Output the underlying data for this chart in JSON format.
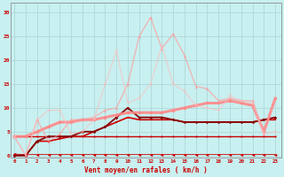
{
  "xlabel": "Vent moyen/en rafales ( km/h )",
  "background_color": "#c8f0f0",
  "grid_color": "#b0d8d8",
  "x_ticks": [
    0,
    1,
    2,
    3,
    4,
    5,
    6,
    7,
    8,
    9,
    10,
    11,
    12,
    13,
    14,
    15,
    16,
    17,
    18,
    19,
    20,
    21,
    22,
    23
  ],
  "y_ticks": [
    0,
    5,
    10,
    15,
    20,
    25,
    30
  ],
  "ylim": [
    -0.5,
    32
  ],
  "xlim": [
    -0.3,
    23.5
  ],
  "series": [
    {
      "x": [
        0,
        1,
        2,
        3,
        4,
        5,
        6,
        7,
        8,
        9,
        10,
        11,
        12,
        13,
        14,
        15,
        16,
        17,
        18,
        19,
        20,
        21,
        22,
        23
      ],
      "y": [
        0.3,
        0.2,
        0.2,
        0.2,
        0.2,
        0.2,
        0.2,
        0.2,
        0.2,
        0.2,
        0.2,
        0.2,
        0.2,
        0.2,
        0.2,
        0.2,
        0.2,
        0.2,
        0.2,
        0.2,
        0.2,
        0.2,
        0.2,
        0.2
      ],
      "color": "#cc0000",
      "lw": 0.6,
      "marker": "<",
      "ms": 2.5,
      "alpha": 1.0
    },
    {
      "x": [
        0,
        1,
        2,
        3,
        4,
        5,
        6,
        7,
        8,
        9,
        10,
        11,
        12,
        13,
        14,
        15,
        16,
        17,
        18,
        19,
        20,
        21,
        22,
        23
      ],
      "y": [
        4,
        4,
        4,
        4,
        4,
        4,
        4,
        4,
        4,
        4,
        4,
        4,
        4,
        4,
        4,
        4,
        4,
        4,
        4,
        4,
        4,
        4,
        4,
        4
      ],
      "color": "#cc0000",
      "lw": 1.0,
      "marker": "*",
      "ms": 2.5,
      "alpha": 1.0
    },
    {
      "x": [
        0,
        1,
        2,
        3,
        4,
        5,
        6,
        7,
        8,
        9,
        10,
        11,
        12,
        13,
        14,
        15,
        16,
        17,
        18,
        19,
        20,
        21,
        22,
        23
      ],
      "y": [
        0,
        0,
        3,
        3,
        3.5,
        4,
        4,
        5,
        6,
        7,
        8,
        7.5,
        7.5,
        7.5,
        7.5,
        7,
        7,
        7,
        7,
        7,
        7,
        7,
        7.5,
        7.5
      ],
      "color": "#cc0000",
      "lw": 1.2,
      "marker": "s",
      "ms": 2,
      "alpha": 1.0
    },
    {
      "x": [
        0,
        1,
        2,
        3,
        4,
        5,
        6,
        7,
        8,
        9,
        10,
        11,
        12,
        13,
        14,
        15,
        16,
        17,
        18,
        19,
        20,
        21,
        22,
        23
      ],
      "y": [
        0,
        0,
        3,
        4,
        4,
        4,
        5,
        5,
        6,
        8,
        10,
        8,
        8,
        8,
        7.5,
        7,
        7,
        7,
        7,
        7,
        7,
        7,
        7.5,
        8
      ],
      "color": "#880000",
      "lw": 1.3,
      "marker": "D",
      "ms": 1.8,
      "alpha": 1.0
    },
    {
      "x": [
        0,
        1,
        2,
        3,
        4,
        5,
        6,
        7,
        8,
        9,
        10,
        11,
        12,
        13,
        14,
        15,
        16,
        17,
        18,
        19,
        20,
        21,
        22,
        23
      ],
      "y": [
        4,
        4,
        5,
        6,
        7,
        7,
        7.5,
        7.5,
        8,
        8.5,
        9,
        9,
        9,
        9,
        9.5,
        10,
        10.5,
        11,
        11,
        11.5,
        11,
        10.5,
        5,
        12
      ],
      "color": "#ff8888",
      "lw": 2.2,
      "marker": "o",
      "ms": 2.5,
      "alpha": 0.9
    },
    {
      "x": [
        0,
        1,
        2,
        3,
        4,
        5,
        6,
        7,
        8,
        9,
        10,
        11,
        12,
        13,
        14,
        15,
        16,
        17,
        18,
        19,
        20,
        21,
        22,
        23
      ],
      "y": [
        4,
        0,
        7.5,
        3,
        4.5,
        7.5,
        7.5,
        8,
        9.5,
        10,
        15,
        25,
        29,
        22.5,
        25.5,
        21,
        14.5,
        14,
        11.5,
        12,
        11.5,
        11.5,
        4.5,
        12
      ],
      "color": "#ff9999",
      "lw": 1.0,
      "marker": "^",
      "ms": 2.5,
      "alpha": 0.65
    },
    {
      "x": [
        0,
        1,
        2,
        3,
        4,
        5,
        6,
        7,
        8,
        9,
        10,
        11,
        12,
        13,
        14,
        15,
        16,
        17,
        18,
        19,
        20,
        21,
        22,
        23
      ],
      "y": [
        4,
        0,
        7.5,
        9.5,
        9.5,
        4.5,
        5,
        7.5,
        15,
        22,
        11,
        12,
        15,
        23,
        15,
        13.5,
        10.5,
        10,
        9.5,
        12.5,
        11.5,
        11,
        4.5,
        5
      ],
      "color": "#ffbbbb",
      "lw": 1.0,
      "marker": "v",
      "ms": 2.5,
      "alpha": 0.55
    }
  ]
}
